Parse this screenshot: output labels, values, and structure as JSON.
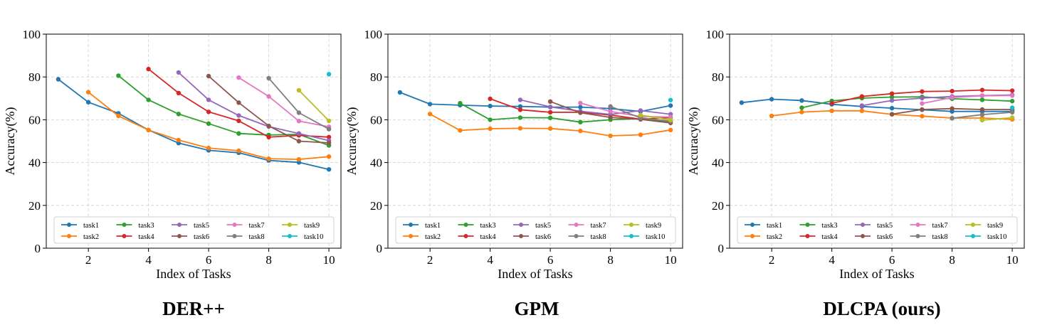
{
  "colors": [
    "#1f77b4",
    "#ff7f0e",
    "#2ca02c",
    "#d62728",
    "#9467bd",
    "#8c564b",
    "#e377c2",
    "#7f7f7f",
    "#bcbd22",
    "#17becf"
  ],
  "chart_data": [
    {
      "type": "line",
      "title": "DER++",
      "xlabel": "Index of Tasks",
      "ylabel": "Accuracy(%)",
      "xlim": [
        0.6,
        10.4
      ],
      "ylim": [
        0,
        100
      ],
      "xticks": [
        "2",
        "4",
        "6",
        "8",
        "10"
      ],
      "yticks": [
        "0",
        "20",
        "40",
        "60",
        "80",
        "100"
      ],
      "grid": true,
      "legend": "bottom",
      "series": [
        {
          "name": "task1",
          "x": [
            1,
            2,
            3,
            4,
            5,
            6,
            7,
            8,
            9,
            10
          ],
          "values": [
            78.9,
            68.2,
            63.0,
            55.2,
            49.1,
            45.7,
            44.6,
            41.0,
            40.1,
            36.8
          ]
        },
        {
          "name": "task2",
          "x": [
            2,
            3,
            4,
            5,
            6,
            7,
            8,
            9,
            10
          ],
          "values": [
            72.9,
            61.8,
            55.2,
            50.5,
            46.8,
            45.5,
            41.8,
            41.5,
            42.8
          ]
        },
        {
          "name": "task3",
          "x": [
            3,
            4,
            5,
            6,
            7,
            8,
            9,
            10
          ],
          "values": [
            80.6,
            69.3,
            62.7,
            58.2,
            53.6,
            52.9,
            53.2,
            48.0
          ]
        },
        {
          "name": "task4",
          "x": [
            4,
            5,
            6,
            7,
            8,
            9,
            10
          ],
          "values": [
            83.7,
            72.5,
            63.7,
            59.5,
            51.9,
            52.7,
            51.9
          ]
        },
        {
          "name": "task5",
          "x": [
            5,
            6,
            7,
            8,
            9,
            10
          ],
          "values": [
            82.1,
            69.3,
            62.0,
            56.8,
            53.6,
            50.3
          ]
        },
        {
          "name": "task6",
          "x": [
            6,
            7,
            8,
            9,
            10
          ],
          "values": [
            80.4,
            68.0,
            57.1,
            50.0,
            49.2
          ]
        },
        {
          "name": "task7",
          "x": [
            7,
            8,
            9,
            10
          ],
          "values": [
            79.7,
            70.9,
            59.4,
            56.7
          ]
        },
        {
          "name": "task8",
          "x": [
            8,
            9,
            10
          ],
          "values": [
            79.4,
            63.3,
            55.6
          ]
        },
        {
          "name": "task9",
          "x": [
            9,
            10
          ],
          "values": [
            73.8,
            59.5
          ]
        },
        {
          "name": "task10",
          "x": [
            10
          ],
          "values": [
            81.3
          ]
        }
      ]
    },
    {
      "type": "line",
      "title": "GPM",
      "xlabel": "Index of Tasks",
      "ylabel": "Accuracy(%)",
      "xlim": [
        0.6,
        10.4
      ],
      "ylim": [
        0,
        100
      ],
      "xticks": [
        "2",
        "4",
        "6",
        "8",
        "10"
      ],
      "yticks": [
        "0",
        "20",
        "40",
        "60",
        "80",
        "100"
      ],
      "grid": true,
      "legend": "bottom",
      "series": [
        {
          "name": "task1",
          "x": [
            1,
            2,
            3,
            4,
            5,
            6,
            7,
            8,
            9,
            10
          ],
          "values": [
            72.8,
            67.3,
            66.8,
            66.4,
            66.2,
            65.9,
            65.9,
            65.2,
            63.9,
            66.6
          ]
        },
        {
          "name": "task2",
          "x": [
            2,
            3,
            4,
            5,
            6,
            7,
            8,
            9,
            10
          ],
          "values": [
            62.7,
            55.0,
            55.8,
            56.0,
            55.9,
            54.8,
            52.5,
            53.0,
            55.2
          ]
        },
        {
          "name": "task3",
          "x": [
            3,
            4,
            5,
            6,
            7,
            8,
            9,
            10
          ],
          "values": [
            67.7,
            60.0,
            61.0,
            60.9,
            58.9,
            60.0,
            60.5,
            59.1
          ]
        },
        {
          "name": "task4",
          "x": [
            4,
            5,
            6,
            7,
            8,
            9,
            10
          ],
          "values": [
            69.8,
            64.7,
            63.5,
            63.5,
            62.2,
            60.3,
            61.0
          ]
        },
        {
          "name": "task5",
          "x": [
            5,
            6,
            7,
            8,
            9,
            10
          ],
          "values": [
            69.3,
            66.0,
            64.0,
            62.5,
            64.3,
            62.6
          ]
        },
        {
          "name": "task6",
          "x": [
            6,
            7,
            8,
            9,
            10
          ],
          "values": [
            68.5,
            63.3,
            61.1,
            60.2,
            58.5
          ]
        },
        {
          "name": "task7",
          "x": [
            7,
            8,
            9,
            10
          ],
          "values": [
            67.8,
            63.9,
            61.5,
            61.3
          ]
        },
        {
          "name": "task8",
          "x": [
            8,
            9,
            10
          ],
          "values": [
            66.2,
            60.9,
            59.3
          ]
        },
        {
          "name": "task9",
          "x": [
            9,
            10
          ],
          "values": [
            62.2,
            59.9
          ]
        },
        {
          "name": "task10",
          "x": [
            10
          ],
          "values": [
            69.2
          ]
        }
      ]
    },
    {
      "type": "line",
      "title": "DLCPA (ours)",
      "xlabel": "Index of Tasks",
      "ylabel": "Accuracy(%)",
      "xlim": [
        0.6,
        10.4
      ],
      "ylim": [
        0,
        100
      ],
      "xticks": [
        "2",
        "4",
        "6",
        "8",
        "10"
      ],
      "yticks": [
        "0",
        "20",
        "40",
        "60",
        "80",
        "100"
      ],
      "grid": true,
      "legend": "bottom",
      "series": [
        {
          "name": "task1",
          "x": [
            1,
            2,
            3,
            4,
            5,
            6,
            7,
            8,
            9,
            10
          ],
          "values": [
            68.0,
            69.6,
            69.0,
            67.2,
            66.2,
            65.4,
            64.7,
            63.9,
            63.9,
            63.9
          ]
        },
        {
          "name": "task2",
          "x": [
            2,
            3,
            4,
            5,
            6,
            7,
            8,
            9,
            10
          ],
          "values": [
            61.8,
            63.6,
            64.2,
            64.2,
            62.5,
            61.7,
            60.8,
            60.8,
            60.2
          ]
        },
        {
          "name": "task3",
          "x": [
            3,
            4,
            5,
            6,
            7,
            8,
            9,
            10
          ],
          "values": [
            65.6,
            68.8,
            70.1,
            70.6,
            70.7,
            69.8,
            69.3,
            68.7
          ]
        },
        {
          "name": "task4",
          "x": [
            4,
            5,
            6,
            7,
            8,
            9,
            10
          ],
          "values": [
            67.7,
            70.9,
            72.2,
            73.2,
            73.4,
            73.9,
            73.6
          ]
        },
        {
          "name": "task5",
          "x": [
            5,
            6,
            7,
            8,
            9,
            10
          ],
          "values": [
            66.6,
            69.0,
            70.1,
            70.9,
            71.3,
            71.6
          ]
        },
        {
          "name": "task6",
          "x": [
            6,
            7,
            8,
            9,
            10
          ],
          "values": [
            62.6,
            64.8,
            65.2,
            64.8,
            64.8
          ]
        },
        {
          "name": "task7",
          "x": [
            7,
            8,
            9,
            10
          ],
          "values": [
            67.6,
            70.4,
            71.2,
            71.3
          ]
        },
        {
          "name": "task8",
          "x": [
            8,
            9,
            10
          ],
          "values": [
            60.7,
            62.4,
            63.5
          ]
        },
        {
          "name": "task9",
          "x": [
            9,
            10
          ],
          "values": [
            59.8,
            61.0
          ]
        },
        {
          "name": "task10",
          "x": [
            10
          ],
          "values": [
            65.6
          ]
        }
      ]
    }
  ]
}
